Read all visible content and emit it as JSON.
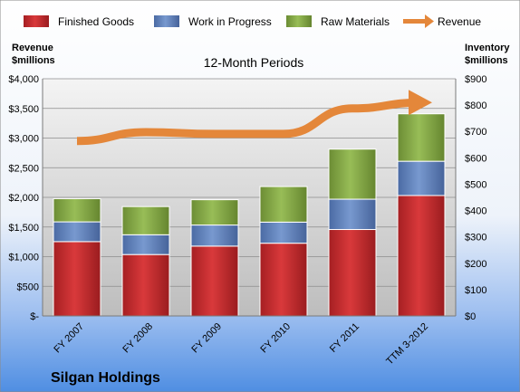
{
  "chart_data": {
    "type": "bar",
    "subtitle": "12-Month Periods",
    "footer_title": "Silgan Holdings",
    "left_axis_label": [
      "Revenue",
      "$millions"
    ],
    "right_axis_label": [
      "Inventory",
      "$millions"
    ],
    "categories": [
      "FY 2007",
      "FY 2008",
      "FY 2009",
      "FY 2010",
      "FY 2011",
      "TTM 3-2012"
    ],
    "left_ticks": [
      "$-",
      "$500",
      "$1,000",
      "$1,500",
      "$2,000",
      "$2,500",
      "$3,000",
      "$3,500",
      "$4,000"
    ],
    "right_ticks": [
      "$0",
      "$100",
      "$200",
      "$300",
      "$400",
      "$500",
      "$600",
      "$700",
      "$800",
      "$900"
    ],
    "left_ylim": [
      0,
      4000
    ],
    "right_ylim": [
      0,
      900
    ],
    "series": [
      {
        "name": "Finished Goods",
        "axis": "right",
        "color": "#c0282a",
        "values": [
          282,
          233,
          265,
          276,
          328,
          457
        ]
      },
      {
        "name": "Work in Progress",
        "axis": "right",
        "color": "#5d80bd",
        "values": [
          75,
          75,
          80,
          80,
          115,
          130
        ]
      },
      {
        "name": "Raw Materials",
        "axis": "right",
        "color": "#7fa342",
        "values": [
          88,
          107,
          96,
          135,
          190,
          180
        ]
      },
      {
        "name": "Revenue",
        "axis": "left",
        "type": "line",
        "color": "#e4873a",
        "values": [
          2950,
          3100,
          3070,
          3070,
          3500,
          3600
        ]
      }
    ],
    "grid": "horizontal",
    "legend_position": "top"
  }
}
